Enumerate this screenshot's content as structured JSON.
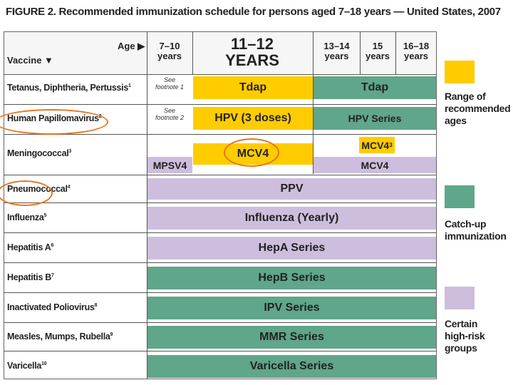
{
  "title": "FIGURE 2. Recommended immunization schedule for persons aged 7–18 years — United States, 2007",
  "header": {
    "age_label": "Age ▶",
    "vaccine_label": "Vaccine ▼",
    "col_7_10": [
      "7–10",
      "years"
    ],
    "col_11_12": [
      "11–12",
      "YEARS"
    ],
    "col_13_14": [
      "13–14",
      "years"
    ],
    "col_15": [
      "15",
      "years"
    ],
    "col_16_18": [
      "16–18",
      "years"
    ]
  },
  "rows": [
    {
      "name": "Tetanus, Diphtheria, Pertussis",
      "sup": "1"
    },
    {
      "name": "Human Papillomavirus",
      "sup": "2"
    },
    {
      "name": "Meningococcal",
      "sup": "3"
    },
    {
      "name": "Pneumococcal",
      "sup": "4"
    },
    {
      "name": "Influenza",
      "sup": "5"
    },
    {
      "name": "Hepatitis A",
      "sup": "6"
    },
    {
      "name": "Hepatitis B",
      "sup": "7"
    },
    {
      "name": "Inactivated Poliovirus",
      "sup": "8"
    },
    {
      "name": "Measles, Mumps, Rubella",
      "sup": "9"
    },
    {
      "name": "Varicella",
      "sup": "10"
    }
  ],
  "notes": {
    "fn1": [
      "See",
      "footnote 1"
    ],
    "fn2": [
      "See",
      "footnote 2"
    ]
  },
  "bars": {
    "tdap_main": "Tdap",
    "tdap_catchup": "Tdap",
    "hpv_main": "HPV (3 doses)",
    "hpv_series": "HPV Series",
    "mpsv4": "MPSV4",
    "mcv4_main": "MCV4",
    "mcv4_15": "MCV4",
    "mcv4_15_sup": "3",
    "mcv4_risk": "MCV4",
    "ppv": "PPV",
    "influenza": "Influenza (Yearly)",
    "hepa": "HepA Series",
    "hepb": "HepB Series",
    "ipv": "IPV Series",
    "mmr": "MMR Series",
    "varicella": "Varicella Series"
  },
  "legend": {
    "range": [
      "Range of",
      "recommended",
      "ages"
    ],
    "catchup": [
      "Catch-up",
      "immunization"
    ],
    "risk": [
      "Certain",
      "high-risk",
      "groups"
    ]
  },
  "colors": {
    "range": "#ffcc00",
    "catchup": "#5fa68a",
    "risk": "#cdbedd",
    "annotation_ring": "#e8741c"
  }
}
